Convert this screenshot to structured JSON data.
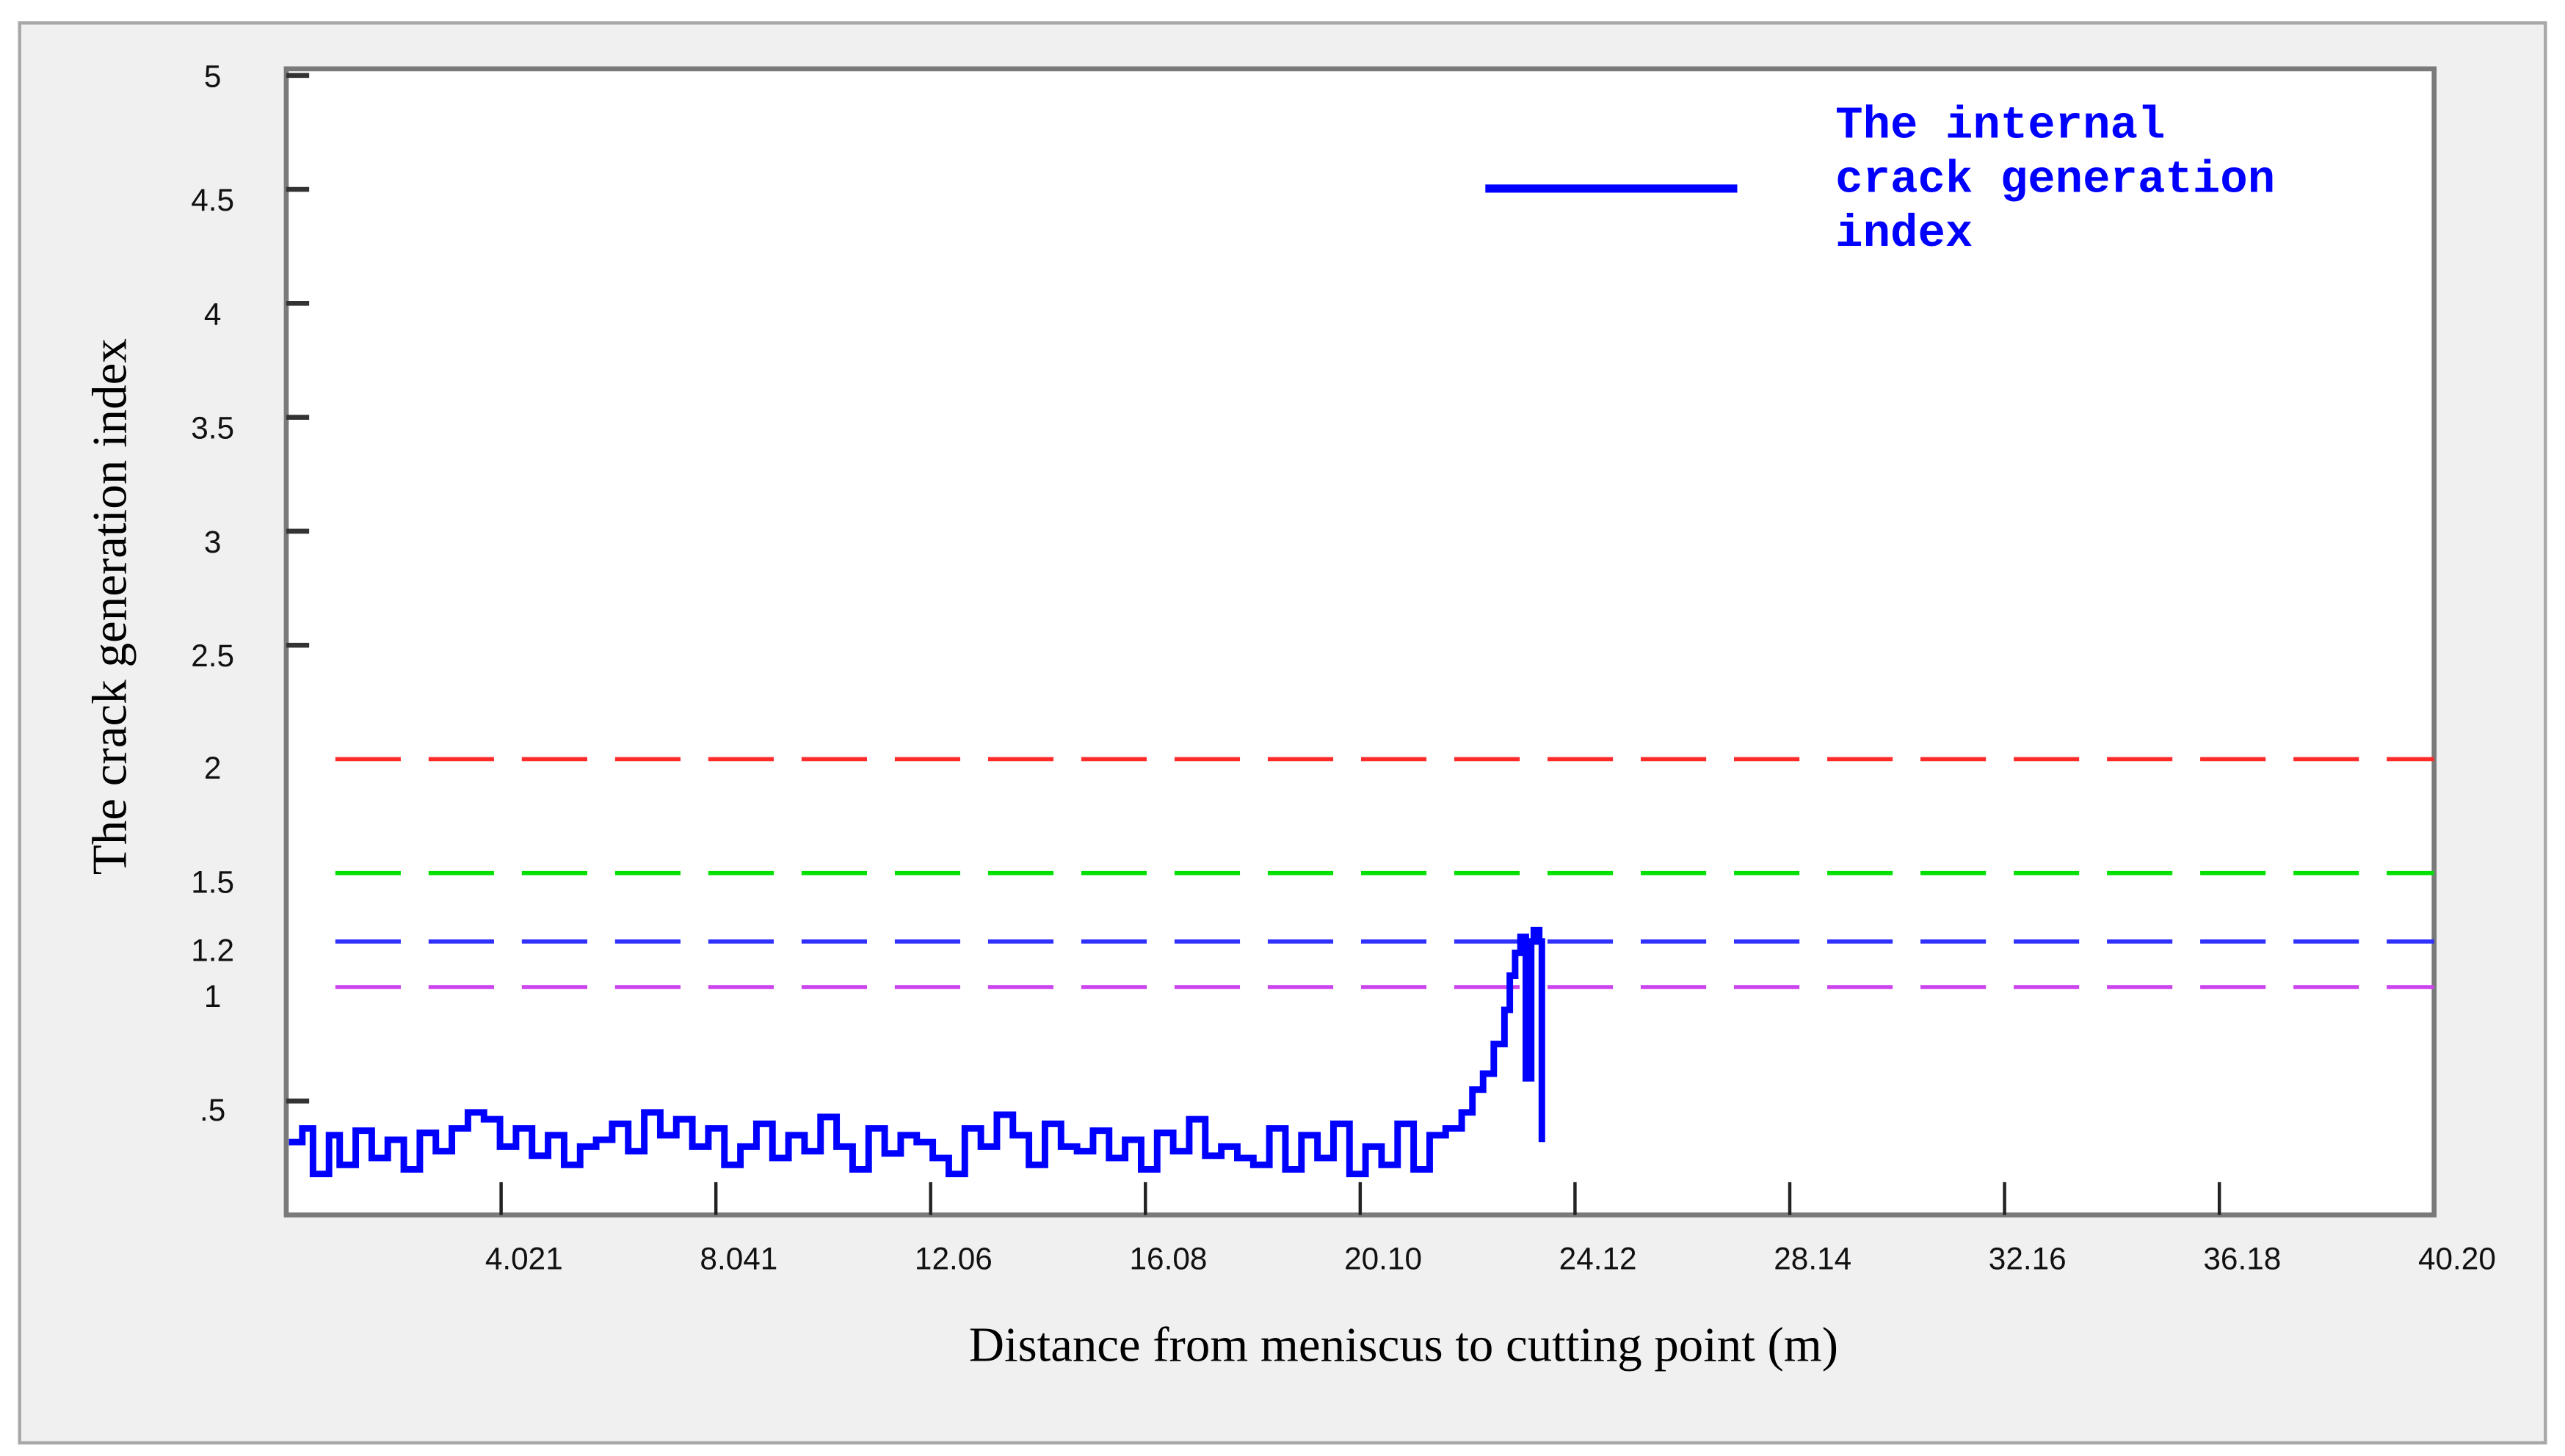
{
  "chart_data": {
    "type": "line",
    "title": "",
    "xlabel": "Distance from meniscus to cutting point (m)",
    "ylabel": "The crack generation index",
    "xlim": [
      0,
      40.2
    ],
    "ylim": [
      0,
      5
    ],
    "x_ticks": [
      "4.021",
      "8.041",
      "12.06",
      "16.08",
      "20.10",
      "24.12",
      "28.14",
      "32.16",
      "36.18",
      "40.20"
    ],
    "x_tick_values": [
      4.021,
      8.041,
      12.06,
      16.08,
      20.1,
      24.12,
      28.14,
      32.16,
      36.18,
      40.2
    ],
    "y_ticks": [
      "5",
      "4.5",
      "4",
      "3.5",
      "3",
      "2.5",
      "2",
      "1.5",
      "1.2",
      "1",
      ".5"
    ],
    "y_tick_values": [
      5,
      4.5,
      4,
      3.5,
      3,
      2.5,
      2,
      1.5,
      1.2,
      1,
      0.5
    ],
    "grid": false,
    "legend_position": "top-right",
    "series": [
      {
        "name": "The internal crack generation index",
        "color": "#0000ff",
        "style": "solid",
        "x": [
          0.05,
          0.3,
          0.5,
          0.8,
          1.0,
          1.3,
          1.6,
          1.9,
          2.2,
          2.5,
          2.8,
          3.1,
          3.4,
          3.7,
          4.0,
          4.3,
          4.6,
          4.9,
          5.2,
          5.5,
          5.8,
          6.1,
          6.4,
          6.7,
          7.0,
          7.3,
          7.6,
          7.9,
          8.2,
          8.5,
          8.8,
          9.1,
          9.4,
          9.7,
          10.0,
          10.3,
          10.6,
          10.9,
          11.2,
          11.5,
          11.8,
          12.1,
          12.4,
          12.7,
          13.0,
          13.3,
          13.6,
          13.9,
          14.2,
          14.5,
          14.8,
          15.1,
          15.4,
          15.7,
          16.0,
          16.3,
          16.6,
          16.9,
          17.2,
          17.5,
          17.8,
          18.1,
          18.4,
          18.7,
          19.0,
          19.3,
          19.6,
          19.9,
          20.2,
          20.5,
          20.8,
          21.1,
          21.4,
          21.7,
          22.0,
          22.2,
          22.4,
          22.6,
          22.8,
          22.9,
          23.0,
          23.1,
          23.2,
          23.3,
          23.35,
          23.45,
          23.5
        ],
        "y": [
          0.32,
          0.38,
          0.18,
          0.35,
          0.22,
          0.37,
          0.25,
          0.33,
          0.2,
          0.36,
          0.28,
          0.38,
          0.45,
          0.42,
          0.3,
          0.38,
          0.26,
          0.35,
          0.22,
          0.3,
          0.33,
          0.4,
          0.28,
          0.45,
          0.35,
          0.42,
          0.3,
          0.38,
          0.22,
          0.3,
          0.4,
          0.25,
          0.35,
          0.28,
          0.43,
          0.3,
          0.2,
          0.38,
          0.27,
          0.35,
          0.32,
          0.25,
          0.18,
          0.38,
          0.3,
          0.44,
          0.35,
          0.22,
          0.4,
          0.3,
          0.28,
          0.37,
          0.25,
          0.33,
          0.2,
          0.36,
          0.28,
          0.42,
          0.26,
          0.3,
          0.25,
          0.22,
          0.38,
          0.2,
          0.35,
          0.25,
          0.4,
          0.18,
          0.3,
          0.22,
          0.4,
          0.2,
          0.35,
          0.38,
          0.45,
          0.55,
          0.62,
          0.75,
          0.9,
          1.05,
          1.15,
          1.22,
          0.6,
          1.2,
          1.25,
          1.2,
          0.32
        ]
      }
    ],
    "reference_lines": [
      {
        "y": 2.0,
        "color": "#ff2a2a",
        "style": "dashed"
      },
      {
        "y": 1.5,
        "color": "#00e000",
        "style": "dashed"
      },
      {
        "y": 1.2,
        "color": "#3030ff",
        "style": "dashed"
      },
      {
        "y": 1.0,
        "color": "#cc44ee",
        "style": "dashed"
      }
    ]
  },
  "legend": {
    "line_color": "#0000ff",
    "lines": [
      "The internal",
      "crack generation",
      "index"
    ]
  },
  "axes": {
    "xlabel": "Distance from meniscus to cutting point (m)",
    "ylabel": "The crack generation index"
  }
}
